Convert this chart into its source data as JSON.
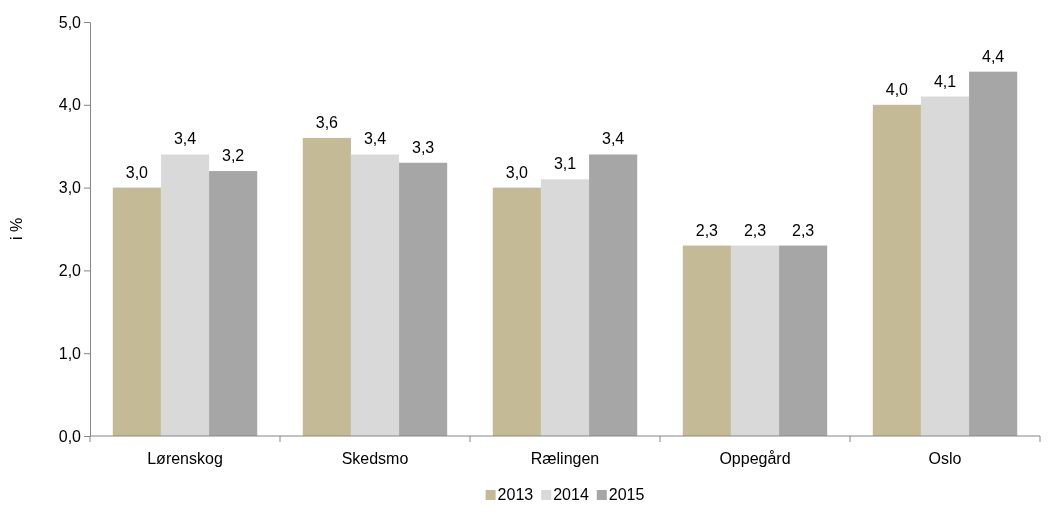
{
  "chart_data": {
    "type": "bar",
    "ylabel": "i %",
    "categories": [
      "Lørenskog",
      "Skedsmo",
      "Rælingen",
      "Oppegård",
      "Oslo"
    ],
    "series": [
      {
        "name": "2013",
        "color": "#c4bb96",
        "values": [
          3.0,
          3.6,
          3.0,
          2.3,
          4.0
        ],
        "value_labels": [
          "3,0",
          "3,6",
          "3,0",
          "2,3",
          "4,0"
        ]
      },
      {
        "name": "2014",
        "color": "#d9d9d9",
        "values": [
          3.4,
          3.4,
          3.1,
          2.3,
          4.1
        ],
        "value_labels": [
          "3,4",
          "3,4",
          "3,1",
          "2,3",
          "4,1"
        ]
      },
      {
        "name": "2015",
        "color": "#a6a6a6",
        "values": [
          3.2,
          3.3,
          3.4,
          2.3,
          4.4
        ],
        "value_labels": [
          "3,2",
          "3,3",
          "3,4",
          "2,3",
          "4,4"
        ]
      }
    ],
    "ylim": [
      0,
      5
    ],
    "yticks": [
      {
        "value": 0,
        "label": "0,0"
      },
      {
        "value": 1,
        "label": "1,0"
      },
      {
        "value": 2,
        "label": "2,0"
      },
      {
        "value": 3,
        "label": "3,0"
      },
      {
        "value": 4,
        "label": "4,0"
      },
      {
        "value": 5,
        "label": "5,0"
      }
    ],
    "grid": false,
    "legend": "bottom"
  }
}
